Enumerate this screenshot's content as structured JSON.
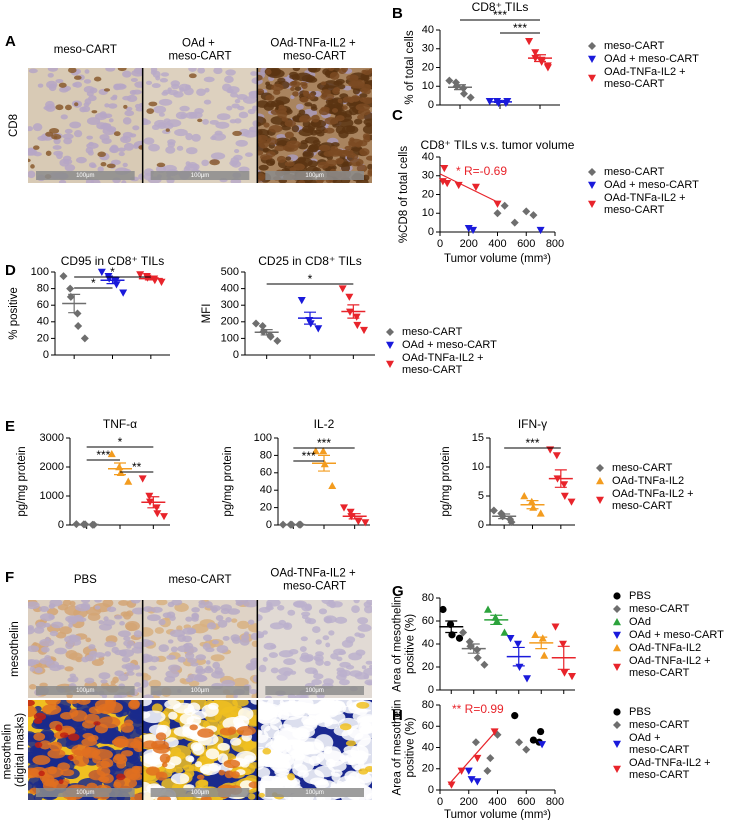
{
  "figure_panels": [
    {
      "panel": "A",
      "row_labels": [
        "CD8"
      ],
      "columns": [
        "meso-CART",
        "OAd + meso-CART",
        "OAd-TNFa-IL2 + meso-CART"
      ],
      "scale_bar": "100μm"
    },
    {
      "panel": "F",
      "row_labels": [
        "mesothelin",
        "mesothelin (digital masks)"
      ],
      "columns": [
        "PBS",
        "meso-CART",
        "OAd-TNFa-IL2 + meso-CART"
      ],
      "scale_bar": "100μm"
    }
  ],
  "chart_data": [
    {
      "panel": "B",
      "type": "dot",
      "title": "CD8⁺ TILs",
      "ylabel": [
        "% of total cells"
      ],
      "ylim": [
        0,
        40
      ],
      "yticks": [
        0,
        10,
        20,
        30,
        40
      ],
      "legend": true,
      "series": [
        {
          "name": "meso-CART",
          "color": "#6e6e6e",
          "marker": "diamond",
          "values": [
            13,
            12,
            10,
            9,
            6,
            4
          ],
          "mean": 9.5,
          "sem": 1.3
        },
        {
          "name": "OAd + meso-CART",
          "color": "#1a1adb",
          "marker": "triangle-down",
          "values": [
            2,
            2,
            1,
            1,
            2
          ],
          "mean": 1.7,
          "sem": 0.3
        },
        {
          "name": "OAd-TNFa-IL2 + meso-CART",
          "color": "#e8242b",
          "marker": "triangle-down",
          "values": [
            34,
            28,
            25,
            24,
            23,
            21,
            20
          ],
          "mean": 25,
          "sem": 1.8
        }
      ],
      "significance": [
        {
          "label": "***",
          "between": [
            0,
            2
          ]
        },
        {
          "label": "***",
          "between": [
            1,
            2
          ]
        }
      ]
    },
    {
      "panel": "C",
      "type": "scatter",
      "title": "CD8⁺ TILs v.s. tumor volume",
      "xlabel": "Tumor volume (mm³)",
      "ylabel": [
        "%CD8 of total cells"
      ],
      "xlim": [
        0,
        800
      ],
      "xticks": [
        0,
        200,
        400,
        600,
        800
      ],
      "ylim": [
        0,
        40
      ],
      "yticks": [
        0,
        10,
        20,
        30,
        40
      ],
      "legend": true,
      "annotation": "* R=-0.69",
      "annotation_color": "#e8242b",
      "fit": {
        "color": "#e8242b",
        "x": [
          0,
          400
        ],
        "y": [
          31,
          16
        ]
      },
      "series": [
        {
          "name": "meso-CART",
          "color": "#6e6e6e",
          "marker": "diamond",
          "x": [
            400,
            450,
            520,
            600,
            650
          ],
          "y": [
            10,
            14,
            5,
            11,
            9
          ]
        },
        {
          "name": "OAd + meso-CART",
          "color": "#1a1adb",
          "marker": "triangle-down",
          "x": [
            200,
            230,
            700
          ],
          "y": [
            2,
            1,
            1
          ]
        },
        {
          "name": "OAd-TNFa-IL2 + meso-CART",
          "color": "#e8242b",
          "marker": "triangle-down",
          "x": [
            30,
            20,
            50,
            130,
            250,
            400
          ],
          "y": [
            34,
            27,
            26,
            25,
            24,
            15
          ]
        }
      ]
    },
    {
      "panel": "D",
      "type": "dot",
      "title": "CD95 in CD8⁺ TILs",
      "ylabel": [
        "% positive"
      ],
      "ylim": [
        0,
        100
      ],
      "yticks": [
        0,
        20,
        40,
        60,
        80,
        100
      ],
      "legend": false,
      "series": [
        {
          "name": "meso-CART",
          "color": "#6e6e6e",
          "marker": "diamond",
          "values": [
            95,
            80,
            70,
            50,
            35,
            20
          ],
          "mean": 62,
          "sem": 11
        },
        {
          "name": "OAd + meso-CART",
          "color": "#1a1adb",
          "marker": "triangle-down",
          "values": [
            100,
            95,
            92,
            90,
            85,
            75
          ],
          "mean": 90,
          "sem": 4
        },
        {
          "name": "OAd-TNFa-IL2 + meso-CART",
          "color": "#e8242b",
          "marker": "triangle-down",
          "values": [
            97,
            95,
            93,
            92,
            90,
            88
          ],
          "mean": 92,
          "sem": 1.5
        }
      ],
      "significance": [
        {
          "label": "*",
          "between": [
            0,
            1
          ]
        },
        {
          "label": "*",
          "between": [
            0,
            2
          ]
        }
      ]
    },
    {
      "type": "dot",
      "title": "CD25 in CD8⁺ TILs",
      "ylabel": [
        "MFI"
      ],
      "ylim": [
        0,
        500
      ],
      "yticks": [
        0,
        100,
        200,
        300,
        400,
        500
      ],
      "legend": true,
      "series": [
        {
          "name": "meso-CART",
          "color": "#6e6e6e",
          "marker": "diamond",
          "values": [
            190,
            175,
            140,
            120,
            110,
            85
          ],
          "mean": 137,
          "sem": 16
        },
        {
          "name": "OAd + meso-CART",
          "color": "#1a1adb",
          "marker": "triangle-down",
          "values": [
            330,
            210,
            190,
            160
          ],
          "mean": 222,
          "sem": 36
        },
        {
          "name": "OAd-TNFa-IL2 + meso-CART",
          "color": "#e8242b",
          "marker": "triangle-down",
          "values": [
            400,
            350,
            260,
            230,
            180,
            150
          ],
          "mean": 262,
          "sem": 40
        }
      ],
      "significance": [
        {
          "label": "*",
          "between": [
            0,
            2
          ]
        }
      ]
    },
    {
      "panel": "E",
      "type": "dot",
      "title": "TNF-α",
      "ylabel": [
        "pg/mg protein"
      ],
      "ylim": [
        0,
        3000
      ],
      "yticks": [
        0,
        1000,
        2000,
        3000
      ],
      "legend": false,
      "series": [
        {
          "name": "meso-CART",
          "color": "#6e6e6e",
          "marker": "diamond",
          "values": [
            30,
            20,
            20,
            10,
            10
          ],
          "mean": 18,
          "sem": 4
        },
        {
          "name": "OAd-TNFa-IL2",
          "color": "#f39c1f",
          "marker": "triangle-up",
          "values": [
            2450,
            2000,
            1800,
            1500
          ],
          "mean": 1938,
          "sem": 200
        },
        {
          "name": "OAd-TNFa-IL2 + meso-CART",
          "color": "#e8242b",
          "marker": "triangle-down",
          "values": [
            1600,
            1000,
            800,
            600,
            400,
            300
          ],
          "mean": 783,
          "sem": 190
        }
      ],
      "significance": [
        {
          "label": "*",
          "between": [
            0,
            2
          ]
        },
        {
          "label": "***",
          "between": [
            0,
            1
          ]
        },
        {
          "label": "**",
          "between": [
            1,
            2
          ]
        }
      ]
    },
    {
      "type": "dot",
      "title": "IL-2",
      "ylabel": [
        "pg/mg protein"
      ],
      "ylim": [
        0,
        100
      ],
      "yticks": [
        0,
        20,
        40,
        60,
        80,
        100
      ],
      "legend": false,
      "series": [
        {
          "name": "meso-CART",
          "color": "#6e6e6e",
          "marker": "diamond",
          "values": [
            0.5,
            0.5,
            0.5,
            0.5,
            0.5
          ],
          "mean": 0.5,
          "sem": 0
        },
        {
          "name": "OAd-TNFa-IL2",
          "color": "#f39c1f",
          "marker": "triangle-up",
          "values": [
            85,
            85,
            70,
            45
          ],
          "mean": 71,
          "sem": 9
        },
        {
          "name": "OAd-TNFa-IL2 + meso-CART",
          "color": "#e8242b",
          "marker": "triangle-down",
          "values": [
            20,
            15,
            10,
            5,
            5,
            3
          ],
          "mean": 10,
          "sem": 3
        }
      ],
      "significance": [
        {
          "label": "***",
          "between": [
            0,
            2
          ]
        },
        {
          "label": "***",
          "between": [
            0,
            1
          ]
        }
      ]
    },
    {
      "type": "dot",
      "title": "IFN-γ",
      "ylabel": [
        "pg/mg protein"
      ],
      "ylim": [
        0,
        15
      ],
      "yticks": [
        0,
        5,
        10,
        15
      ],
      "legend": true,
      "series": [
        {
          "name": "meso-CART",
          "color": "#6e6e6e",
          "marker": "diamond",
          "values": [
            2.5,
            2,
            1.5,
            1,
            0.5
          ],
          "mean": 1.5,
          "sem": 0.4
        },
        {
          "name": "OAd-TNFa-IL2",
          "color": "#f39c1f",
          "marker": "triangle-up",
          "values": [
            5,
            4,
            3,
            2
          ],
          "mean": 3.5,
          "sem": 0.7
        },
        {
          "name": "OAd-TNFa-IL2 + meso-CART",
          "color": "#e8242b",
          "marker": "triangle-down",
          "values": [
            13,
            12,
            8,
            7,
            5,
            4
          ],
          "mean": 8,
          "sem": 1.5
        }
      ],
      "significance": [
        {
          "label": "***",
          "between": [
            0,
            2
          ]
        }
      ]
    },
    {
      "panel": "G",
      "type": "dot",
      "ylabel": [
        "Area of mesothelin",
        "positive (%)"
      ],
      "ylim": [
        0,
        80
      ],
      "yticks": [
        0,
        20,
        40,
        60,
        80
      ],
      "legend": true,
      "series": [
        {
          "name": "PBS",
          "color": "#000000",
          "marker": "circle",
          "values": [
            70,
            57,
            48,
            45
          ],
          "mean": 55,
          "sem": 5
        },
        {
          "name": "meso-CART",
          "color": "#6e6e6e",
          "marker": "diamond",
          "values": [
            50,
            42,
            38,
            35,
            28,
            22
          ],
          "mean": 36,
          "sem": 4
        },
        {
          "name": "OAd",
          "color": "#2ca33c",
          "marker": "triangle-up",
          "values": [
            70,
            63,
            60,
            50
          ],
          "mean": 61,
          "sem": 4
        },
        {
          "name": "OAd + meso-CART",
          "color": "#1a1adb",
          "marker": "triangle-down",
          "values": [
            45,
            40,
            20,
            10
          ],
          "mean": 29,
          "sem": 8
        },
        {
          "name": "OAd-TNFa-IL2",
          "color": "#f39c1f",
          "marker": "triangle-up",
          "values": [
            48,
            45,
            30
          ],
          "mean": 41,
          "sem": 5
        },
        {
          "name": "OAd-TNFa-IL2 + meso-CART",
          "color": "#e8242b",
          "marker": "triangle-down",
          "values": [
            55,
            40,
            15,
            12
          ],
          "mean": 28,
          "sem": 10
        }
      ]
    },
    {
      "panel": "H",
      "type": "scatter",
      "xlabel": "Tumor volume (mm³)",
      "ylabel": [
        "Area of mesothelin",
        "positive (%)"
      ],
      "xlim": [
        0,
        800
      ],
      "xticks": [
        0,
        200,
        400,
        600,
        800
      ],
      "ylim": [
        0,
        80
      ],
      "yticks": [
        0,
        20,
        40,
        60,
        80
      ],
      "legend": true,
      "legend_wrap": true,
      "annotation": "** R=0.99",
      "annotation_color": "#e8242b",
      "fit": {
        "color": "#e8242b",
        "x": [
          60,
          400
        ],
        "y": [
          5,
          57
        ]
      },
      "series": [
        {
          "name": "PBS",
          "color": "#000000",
          "marker": "circle",
          "x": [
            520,
            700,
            650,
            690
          ],
          "y": [
            70,
            55,
            47,
            45
          ]
        },
        {
          "name": "meso-CART",
          "color": "#6e6e6e",
          "marker": "diamond",
          "x": [
            250,
            350,
            330,
            400,
            550,
            600
          ],
          "y": [
            45,
            30,
            18,
            52,
            45,
            38
          ]
        },
        {
          "name": "OAd + meso-CART",
          "color": "#1a1adb",
          "marker": "triangle-down",
          "x": [
            200,
            220,
            260,
            710
          ],
          "y": [
            18,
            10,
            8,
            43
          ]
        },
        {
          "name": "OAd-TNFa-IL2 + meso-CART",
          "color": "#e8242b",
          "marker": "triangle-down",
          "x": [
            80,
            150,
            260,
            380
          ],
          "y": [
            5,
            18,
            30,
            55
          ]
        }
      ]
    }
  ]
}
